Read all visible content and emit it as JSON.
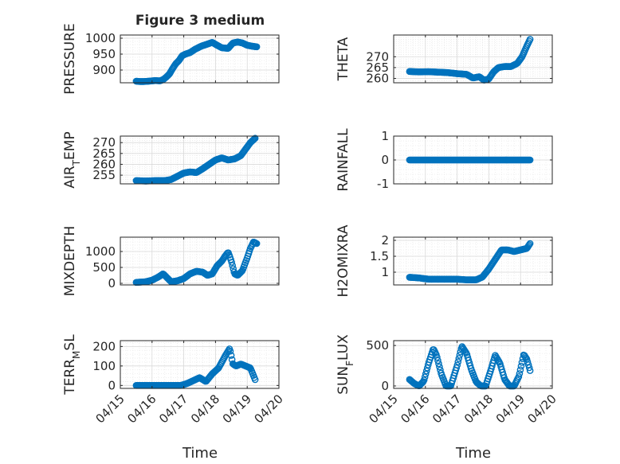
{
  "figure": {
    "title": "Figure 3 medium",
    "xlabel": "Time"
  },
  "colors": {
    "marker": "#0072BD",
    "axes": "#262626",
    "grid": "#d9d9d9",
    "minor_grid": "#eaeaea"
  },
  "chart_data": [
    {
      "type": "scatter",
      "ylabel_parts": [
        [
          "PRESSURE",
          ""
        ]
      ],
      "xlim": [
        0,
        5
      ],
      "ylim": [
        860,
        1010
      ],
      "xticks": [
        0,
        1,
        2,
        3,
        4,
        5
      ],
      "xticklabels": [
        "04/15",
        "04/16",
        "04/17",
        "04/18",
        "04/19",
        "04/20"
      ],
      "yticks": [
        900,
        950,
        1000
      ],
      "yticklabels": [
        "900",
        "950",
        "1000"
      ],
      "x_unit": "days since 04/15",
      "curve": [
        [
          0.5,
          865
        ],
        [
          0.6,
          864
        ],
        [
          0.75,
          864
        ],
        [
          0.9,
          865
        ],
        [
          1.0,
          866
        ],
        [
          1.1,
          867
        ],
        [
          1.25,
          866
        ],
        [
          1.35,
          870
        ],
        [
          1.45,
          878
        ],
        [
          1.55,
          888
        ],
        [
          1.65,
          905
        ],
        [
          1.75,
          920
        ],
        [
          1.85,
          930
        ],
        [
          1.95,
          945
        ],
        [
          2.05,
          950
        ],
        [
          2.2,
          955
        ],
        [
          2.35,
          965
        ],
        [
          2.55,
          975
        ],
        [
          2.7,
          980
        ],
        [
          2.9,
          987
        ],
        [
          3.05,
          978
        ],
        [
          3.2,
          970
        ],
        [
          3.4,
          968
        ],
        [
          3.55,
          985
        ],
        [
          3.7,
          988
        ],
        [
          3.85,
          985
        ],
        [
          4.0,
          978
        ],
        [
          4.15,
          975
        ],
        [
          4.3,
          973
        ]
      ],
      "samples": 160
    },
    {
      "type": "scatter",
      "ylabel_parts": [
        [
          "THETA",
          ""
        ]
      ],
      "xlim": [
        0,
        5
      ],
      "ylim": [
        258,
        280
      ],
      "xticks": [
        0,
        1,
        2,
        3,
        4,
        5
      ],
      "xticklabels": [
        "04/15",
        "04/16",
        "04/17",
        "04/18",
        "04/19",
        "04/20"
      ],
      "yticks": [
        260,
        265,
        270
      ],
      "yticklabels": [
        "260",
        "265",
        "270"
      ],
      "curve": [
        [
          0.5,
          263.2
        ],
        [
          0.8,
          263
        ],
        [
          1.1,
          263.1
        ],
        [
          1.4,
          262.9
        ],
        [
          1.7,
          262.7
        ],
        [
          2.0,
          262.2
        ],
        [
          2.3,
          261.9
        ],
        [
          2.5,
          260.2
        ],
        [
          2.7,
          260.8
        ],
        [
          2.85,
          259.2
        ],
        [
          3.0,
          259.8
        ],
        [
          3.15,
          263
        ],
        [
          3.3,
          265
        ],
        [
          3.5,
          265.5
        ],
        [
          3.7,
          265.5
        ],
        [
          3.9,
          267
        ],
        [
          4.05,
          270
        ],
        [
          4.2,
          275
        ],
        [
          4.3,
          278
        ]
      ],
      "samples": 150
    },
    {
      "type": "scatter",
      "ylabel_parts": [
        [
          "AIR",
          ""
        ],
        [
          "T",
          "sub"
        ],
        [
          "EMP",
          ""
        ]
      ],
      "xlim": [
        0,
        5
      ],
      "ylim": [
        251,
        273
      ],
      "xticks": [
        0,
        1,
        2,
        3,
        4,
        5
      ],
      "xticklabels": [
        "04/15",
        "04/16",
        "04/17",
        "04/18",
        "04/19",
        "04/20"
      ],
      "yticks": [
        255,
        260,
        265,
        270
      ],
      "yticklabels": [
        "255",
        "260",
        "265",
        "270"
      ],
      "curve": [
        [
          0.5,
          252.5
        ],
        [
          0.8,
          252.3
        ],
        [
          1.1,
          252.5
        ],
        [
          1.4,
          252.5
        ],
        [
          1.6,
          253
        ],
        [
          1.8,
          254.5
        ],
        [
          2.0,
          256
        ],
        [
          2.2,
          256.5
        ],
        [
          2.4,
          256.2
        ],
        [
          2.6,
          258
        ],
        [
          2.8,
          260
        ],
        [
          3.0,
          262
        ],
        [
          3.2,
          263
        ],
        [
          3.4,
          262
        ],
        [
          3.6,
          262.5
        ],
        [
          3.8,
          264
        ],
        [
          3.95,
          267
        ],
        [
          4.1,
          270
        ],
        [
          4.25,
          272
        ]
      ],
      "samples": 150
    },
    {
      "type": "scatter",
      "ylabel_parts": [
        [
          "RAINFALL",
          ""
        ]
      ],
      "xlim": [
        0,
        5
      ],
      "ylim": [
        -1,
        1
      ],
      "xticks": [
        0,
        1,
        2,
        3,
        4,
        5
      ],
      "xticklabels": [
        "04/15",
        "04/16",
        "04/17",
        "04/18",
        "04/19",
        "04/20"
      ],
      "yticks": [
        -1,
        0,
        1
      ],
      "yticklabels": [
        "-1",
        "0",
        "1"
      ],
      "curve": [
        [
          0.5,
          0
        ],
        [
          4.3,
          0
        ]
      ],
      "samples": 150
    },
    {
      "type": "scatter",
      "ylabel_parts": [
        [
          "MIXDEPTH",
          ""
        ]
      ],
      "xlim": [
        0,
        5
      ],
      "ylim": [
        -50,
        1450
      ],
      "xticks": [
        0,
        1,
        2,
        3,
        4,
        5
      ],
      "xticklabels": [
        "04/15",
        "04/16",
        "04/17",
        "04/18",
        "04/19",
        "04/20"
      ],
      "yticks": [
        0,
        500,
        1000
      ],
      "yticklabels": [
        "0",
        "500",
        "1000"
      ],
      "curve": [
        [
          0.5,
          30
        ],
        [
          0.8,
          50
        ],
        [
          1.0,
          100
        ],
        [
          1.2,
          200
        ],
        [
          1.35,
          300
        ],
        [
          1.45,
          200
        ],
        [
          1.6,
          50
        ],
        [
          1.8,
          80
        ],
        [
          2.0,
          150
        ],
        [
          2.2,
          300
        ],
        [
          2.4,
          380
        ],
        [
          2.6,
          350
        ],
        [
          2.75,
          250
        ],
        [
          2.9,
          300
        ],
        [
          3.05,
          550
        ],
        [
          3.2,
          700
        ],
        [
          3.3,
          850
        ],
        [
          3.4,
          980
        ],
        [
          3.5,
          700
        ],
        [
          3.6,
          300
        ],
        [
          3.7,
          250
        ],
        [
          3.85,
          400
        ],
        [
          4.0,
          800
        ],
        [
          4.1,
          1100
        ],
        [
          4.2,
          1300
        ],
        [
          4.3,
          1250
        ]
      ],
      "samples": 150
    },
    {
      "type": "scatter",
      "ylabel_parts": [
        [
          "H2OMIXRA",
          ""
        ]
      ],
      "xlim": [
        0,
        5
      ],
      "ylim": [
        0.6,
        2.1
      ],
      "xticks": [
        0,
        1,
        2,
        3,
        4,
        5
      ],
      "xticklabels": [
        "04/15",
        "04/16",
        "04/17",
        "04/18",
        "04/19",
        "04/20"
      ],
      "yticks": [
        1,
        1.5,
        2
      ],
      "yticklabels": [
        "1",
        "1.5",
        "2"
      ],
      "curve": [
        [
          0.5,
          0.84
        ],
        [
          0.8,
          0.82
        ],
        [
          1.1,
          0.78
        ],
        [
          1.5,
          0.78
        ],
        [
          2.0,
          0.78
        ],
        [
          2.3,
          0.76
        ],
        [
          2.6,
          0.76
        ],
        [
          2.8,
          0.85
        ],
        [
          3.0,
          1.1
        ],
        [
          3.2,
          1.4
        ],
        [
          3.4,
          1.7
        ],
        [
          3.6,
          1.7
        ],
        [
          3.8,
          1.65
        ],
        [
          4.0,
          1.7
        ],
        [
          4.2,
          1.75
        ],
        [
          4.3,
          1.9
        ]
      ],
      "samples": 150
    },
    {
      "type": "scatter",
      "ylabel_parts": [
        [
          "TERR",
          ""
        ],
        [
          "M",
          "sub"
        ],
        [
          "SL",
          ""
        ]
      ],
      "xlim": [
        0,
        5
      ],
      "ylim": [
        -15,
        230
      ],
      "xticks": [
        0,
        1,
        2,
        3,
        4,
        5
      ],
      "xticklabels": [
        "04/15",
        "04/16",
        "04/17",
        "04/18",
        "04/19",
        "04/20"
      ],
      "yticks": [
        0,
        100,
        200
      ],
      "yticklabels": [
        "0",
        "100",
        "200"
      ],
      "curve": [
        [
          0.5,
          0
        ],
        [
          1.9,
          0
        ],
        [
          2.1,
          10
        ],
        [
          2.3,
          25
        ],
        [
          2.5,
          40
        ],
        [
          2.7,
          20
        ],
        [
          2.9,
          60
        ],
        [
          3.1,
          90
        ],
        [
          3.3,
          150
        ],
        [
          3.45,
          190
        ],
        [
          3.55,
          110
        ],
        [
          3.65,
          100
        ],
        [
          3.8,
          110
        ],
        [
          3.95,
          100
        ],
        [
          4.1,
          90
        ],
        [
          4.25,
          30
        ]
      ],
      "samples": 140
    },
    {
      "type": "scatter",
      "ylabel_parts": [
        [
          "SUN",
          ""
        ],
        [
          "F",
          "sub"
        ],
        [
          "LUX",
          ""
        ]
      ],
      "xlim": [
        0,
        5
      ],
      "ylim": [
        -30,
        560
      ],
      "xticks": [
        0,
        1,
        2,
        3,
        4,
        5
      ],
      "xticklabels": [
        "04/15",
        "04/16",
        "04/17",
        "04/18",
        "04/19",
        "04/20"
      ],
      "yticks": [
        0,
        500
      ],
      "yticklabels": [
        "0",
        "500"
      ],
      "curve": [
        [
          0.5,
          80
        ],
        [
          0.65,
          30
        ],
        [
          0.8,
          0
        ],
        [
          0.95,
          60
        ],
        [
          1.1,
          280
        ],
        [
          1.25,
          460
        ],
        [
          1.35,
          380
        ],
        [
          1.5,
          150
        ],
        [
          1.65,
          0
        ],
        [
          1.8,
          0
        ],
        [
          2.0,
          250
        ],
        [
          2.15,
          490
        ],
        [
          2.3,
          400
        ],
        [
          2.45,
          200
        ],
        [
          2.6,
          50
        ],
        [
          2.75,
          0
        ],
        [
          2.9,
          0
        ],
        [
          3.05,
          180
        ],
        [
          3.2,
          380
        ],
        [
          3.35,
          280
        ],
        [
          3.5,
          80
        ],
        [
          3.65,
          0
        ],
        [
          3.8,
          0
        ],
        [
          3.95,
          120
        ],
        [
          4.1,
          390
        ],
        [
          4.2,
          330
        ],
        [
          4.3,
          190
        ]
      ],
      "samples": 150
    }
  ]
}
